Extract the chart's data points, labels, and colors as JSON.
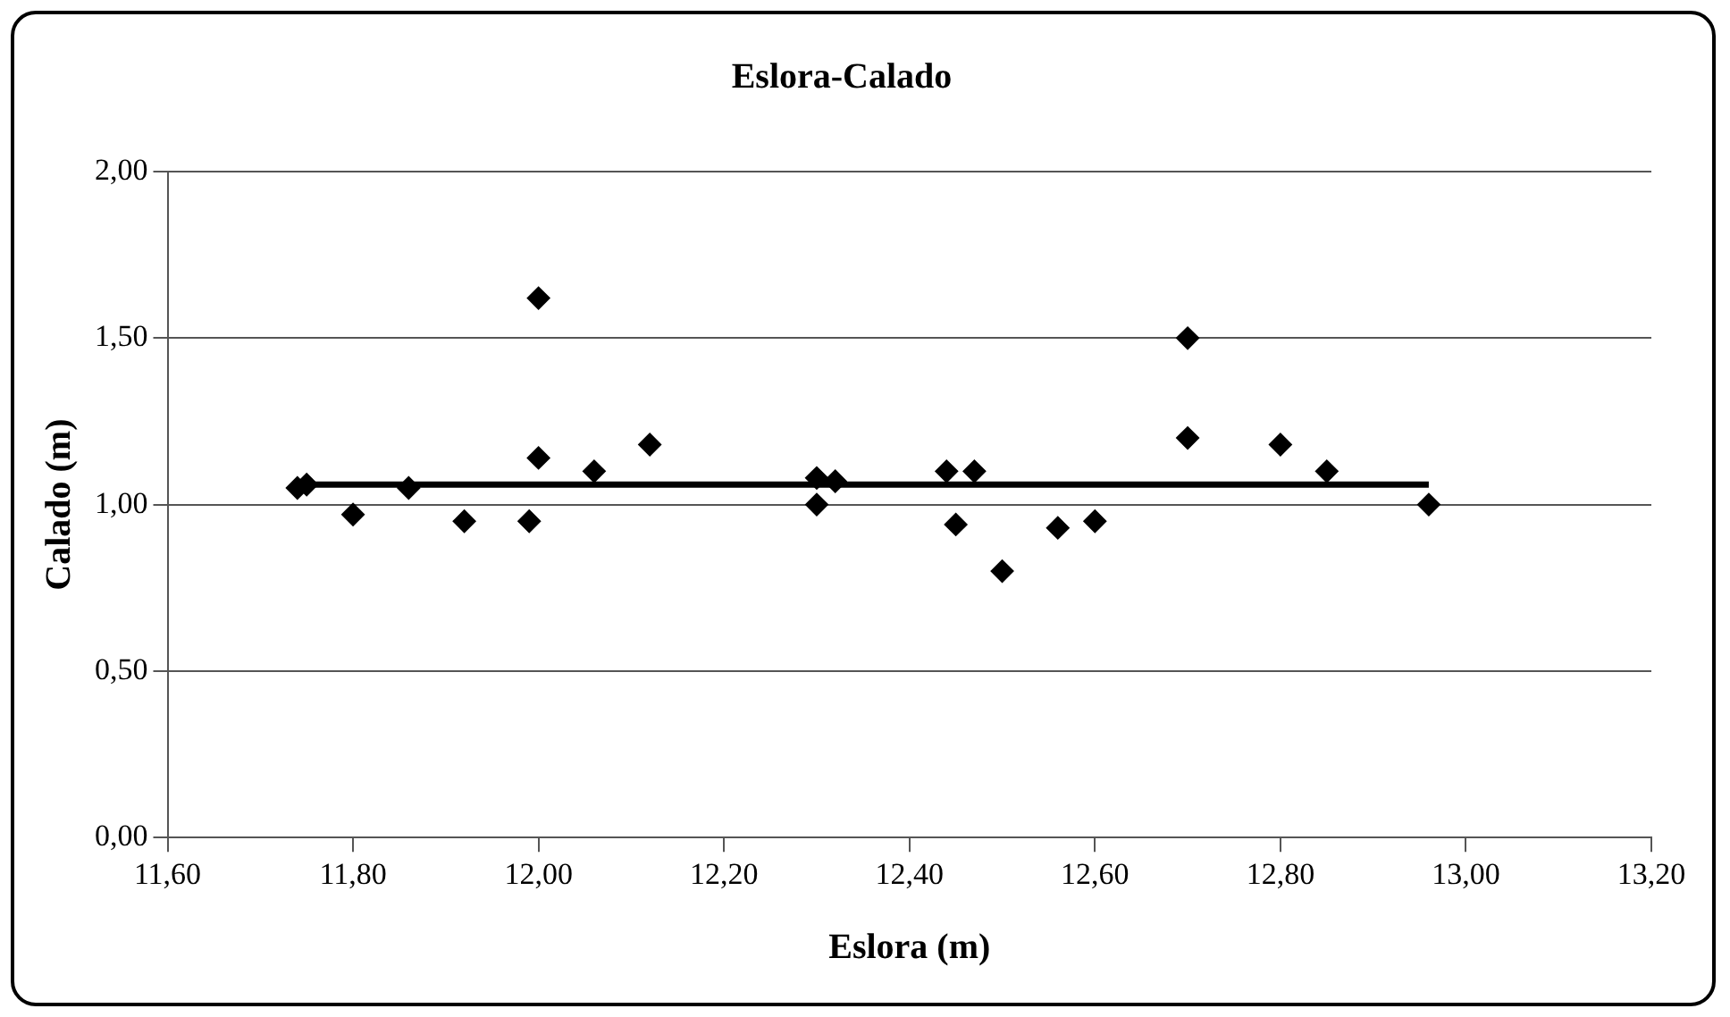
{
  "chart_data": {
    "type": "scatter",
    "title": "Eslora-Calado",
    "xlabel": "Eslora (m)",
    "ylabel": "Calado (m)",
    "xlim": [
      11.6,
      13.2
    ],
    "xticks": [
      {
        "value": 11.6,
        "label": "11,60"
      },
      {
        "value": 11.8,
        "label": "11,80"
      },
      {
        "value": 12.0,
        "label": "12,00"
      },
      {
        "value": 12.2,
        "label": "12,20"
      },
      {
        "value": 12.4,
        "label": "12,40"
      },
      {
        "value": 12.6,
        "label": "12,60"
      },
      {
        "value": 12.8,
        "label": "12,80"
      },
      {
        "value": 13.0,
        "label": "13,00"
      },
      {
        "value": 13.2,
        "label": "13,20"
      }
    ],
    "ylim": [
      0,
      2
    ],
    "yticks": [
      {
        "value": 0,
        "label": "0,00"
      },
      {
        "value": 0.5,
        "label": "0,50"
      },
      {
        "value": 1.0,
        "label": "1,00"
      },
      {
        "value": 1.5,
        "label": "1,50"
      },
      {
        "value": 2.0,
        "label": "2,00"
      }
    ],
    "grid": "y",
    "legend": false,
    "marker": "diamond",
    "series": [
      {
        "type": "scatter",
        "color": "#000000",
        "x": [
          11.74,
          11.75,
          11.8,
          11.86,
          11.92,
          11.99,
          12.0,
          12.0,
          12.06,
          12.12,
          12.3,
          12.3,
          12.32,
          12.44,
          12.45,
          12.47,
          12.5,
          12.56,
          12.6,
          12.7,
          12.7,
          12.8,
          12.85,
          12.96
        ],
        "values": [
          1.05,
          1.06,
          0.97,
          1.05,
          0.95,
          0.95,
          1.62,
          1.14,
          1.1,
          1.18,
          1.08,
          1.0,
          1.07,
          1.1,
          0.94,
          1.1,
          0.8,
          0.93,
          0.95,
          1.5,
          1.2,
          1.18,
          1.1,
          1.0
        ]
      },
      {
        "type": "line",
        "color": "#000000",
        "marker": "none",
        "line_style": "solid",
        "x": [
          11.74,
          12.96
        ],
        "values": [
          1.06,
          1.06
        ]
      }
    ]
  }
}
